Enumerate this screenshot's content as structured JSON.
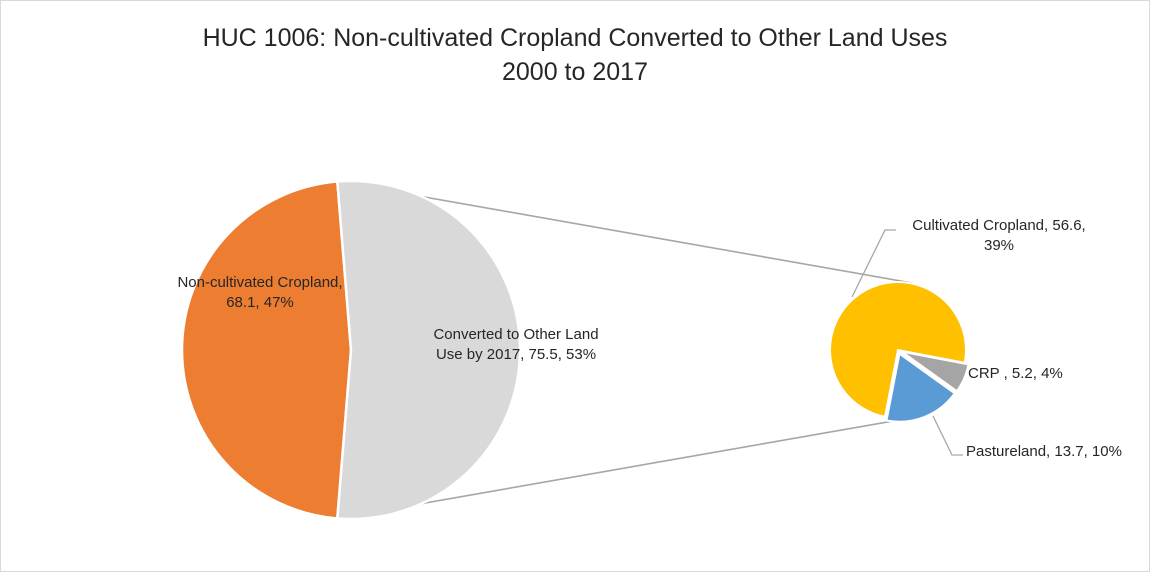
{
  "chart_data": {
    "type": "pie",
    "variant": "pie-of-pie",
    "title": "HUC 1006: Non-cultivated Cropland Converted to Other Land Uses",
    "subtitle": "2000 to 2017",
    "main_pie": {
      "slices": [
        {
          "label_lines": [
            "Non-cultivated Cropland,",
            "68.1, 47%"
          ],
          "value": 68.1,
          "percent": 47,
          "color": "#ED7D31"
        },
        {
          "label_lines": [
            "Converted to Other Land",
            "Use by 2017, 75.5, 53%"
          ],
          "value": 75.5,
          "percent": 53,
          "color": "#D9D9D9"
        }
      ]
    },
    "secondary_pie": {
      "slices": [
        {
          "label_lines": [
            "Cultivated Cropland, 56.6,",
            "39%"
          ],
          "value": 56.6,
          "percent": 39,
          "color": "#FFC000"
        },
        {
          "label_lines": [
            "CRP , 5.2, 4%"
          ],
          "value": 5.2,
          "percent": 4,
          "color": "#A5A5A5"
        },
        {
          "label_lines": [
            "Pastureland, 13.7, 10%"
          ],
          "value": 13.7,
          "percent": 10,
          "color": "#5B9BD5"
        }
      ]
    },
    "connector_color": "#A6A6A6",
    "legend": "none"
  }
}
